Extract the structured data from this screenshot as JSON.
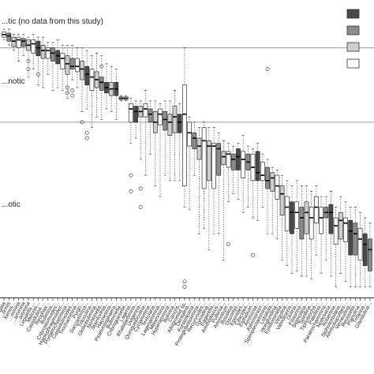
{
  "chart_data": {
    "type": "box",
    "title": "",
    "xlabel": "",
    "ylabel": "",
    "y_axis_orientation": "inverted",
    "y_range": [
      -0.08,
      1.04
    ],
    "zone_boundaries": [
      0.1,
      0.38
    ],
    "zone_labels": [
      "...tic (no data from this study)",
      "...notic",
      "...otic"
    ],
    "legend_position": "top-right",
    "legend_fills": [
      "#4a4a4a",
      "#8c8c8c",
      "#cfcfcf",
      "#ffffff"
    ],
    "categories": [
      "...laevigata",
      "...ormis",
      "Xenos...",
      "...mmina",
      "...ammina",
      "...ammina",
      "Lepidella ...",
      "Melonis...",
      "Cassidulina ...",
      "Reophax...",
      "Bulimina...",
      "Cribrostomoides...",
      "Haplophragmoides...",
      "Portatrochammina...",
      "Cassidulinoides...",
      "Trochammina...",
      "Pyrgo...",
      "Saccammina...",
      "Triloculina...",
      "Globobulimina...",
      "Nonionella...",
      "Stainforthia...",
      "Haynesina...",
      "Psammosphaera...",
      "Buliminella...",
      "Cribrogoesella...",
      "Lagena...",
      "Rhabdammina...",
      "Uvigerina...",
      "Quinqueloculina...",
      "Cyclammina...",
      "Textularia...",
      "Lagenammina...",
      "Miliammina...",
      "Hyperammina...",
      "Bolivina...",
      "Cancris...",
      "Allogromiid sp.",
      "Dentalina...",
      "Fursenkoina...",
      "Protoglobobulimina...",
      "Recurvoides...",
      "Gyroidina...",
      "Eggerella...",
      "Ammodiscus...",
      "Pullenia...",
      "Ammotium...",
      "Rosalina...",
      "Discorbis...",
      "Eponides...",
      "Cibicides...",
      "Elphidium...",
      "Ammonia...",
      "Astrononion...",
      "Spiroplectammina...",
      "Lobatula...",
      "Hoeglundina...",
      "Epistominella...",
      "Virgulina...",
      "Valvulineria...",
      "Oolina...",
      "Fissurina...",
      "Sigmoilina...",
      "Spirillina...",
      "Tiphotrocha...",
      "Patellina...",
      "Paratrochammina...",
      "Nodosaria...",
      "Robertina...",
      "Siphotextularia...",
      "Ammobaculites...",
      "Verneuilina...",
      "Reussella...",
      "Planulina...",
      "Trifarina...",
      "Glandulina..."
    ],
    "series": [
      {
        "values": [
          {
            "fill": "#ffffff",
            "min": 0.03,
            "q1": 0.04,
            "median": 0.05,
            "q3": 0.06,
            "max": 0.07,
            "outliers": []
          },
          {
            "fill": "#8c8c8c",
            "min": 0.03,
            "q1": 0.045,
            "median": 0.055,
            "q3": 0.075,
            "max": 0.09,
            "outliers": []
          },
          {
            "fill": "#cfcfcf",
            "min": 0.05,
            "q1": 0.06,
            "median": 0.075,
            "q3": 0.095,
            "max": 0.11,
            "outliers": []
          },
          {
            "fill": "#ffffff",
            "min": 0.05,
            "q1": 0.06,
            "median": 0.07,
            "q3": 0.1,
            "max": 0.15,
            "outliers": []
          },
          {
            "fill": "#8c8c8c",
            "min": 0.05,
            "q1": 0.065,
            "median": 0.075,
            "q3": 0.095,
            "max": 0.13,
            "outliers": []
          },
          {
            "fill": "#cfcfcf",
            "min": 0.06,
            "q1": 0.07,
            "median": 0.09,
            "q3": 0.11,
            "max": 0.21,
            "outliers": [
              0.15,
              0.18
            ]
          },
          {
            "fill": "#ffffff",
            "min": 0.05,
            "q1": 0.07,
            "median": 0.085,
            "q3": 0.12,
            "max": 0.18,
            "outliers": []
          },
          {
            "fill": "#4a4a4a",
            "min": 0.06,
            "q1": 0.075,
            "median": 0.1,
            "q3": 0.13,
            "max": 0.24,
            "outliers": [
              0.2
            ]
          },
          {
            "fill": "#cfcfcf",
            "min": 0.06,
            "q1": 0.09,
            "median": 0.11,
            "q3": 0.14,
            "max": 0.25,
            "outliers": []
          },
          {
            "fill": "#ffffff",
            "min": 0.08,
            "q1": 0.1,
            "median": 0.11,
            "q3": 0.14,
            "max": 0.2,
            "outliers": []
          },
          {
            "fill": "#8c8c8c",
            "min": 0.08,
            "q1": 0.1,
            "median": 0.12,
            "q3": 0.15,
            "max": 0.26,
            "outliers": []
          },
          {
            "fill": "#4a4a4a",
            "min": 0.07,
            "q1": 0.11,
            "median": 0.13,
            "q3": 0.16,
            "max": 0.25,
            "outliers": []
          },
          {
            "fill": "#ffffff",
            "min": 0.09,
            "q1": 0.12,
            "median": 0.14,
            "q3": 0.18,
            "max": 0.26,
            "outliers": []
          },
          {
            "fill": "#cfcfcf",
            "min": 0.09,
            "q1": 0.13,
            "median": 0.16,
            "q3": 0.2,
            "max": 0.29,
            "outliers": [
              0.25,
              0.27
            ]
          },
          {
            "fill": "#8c8c8c",
            "min": 0.09,
            "q1": 0.14,
            "median": 0.17,
            "q3": 0.18,
            "max": 0.22,
            "outliers": [
              0.26,
              0.28
            ]
          },
          {
            "fill": "#ffffff",
            "min": 0.1,
            "q1": 0.14,
            "median": 0.17,
            "q3": 0.19,
            "max": 0.25,
            "outliers": []
          },
          {
            "fill": "#cfcfcf",
            "min": 0.1,
            "q1": 0.15,
            "median": 0.18,
            "q3": 0.22,
            "max": 0.34,
            "outliers": [
              0.38
            ]
          },
          {
            "fill": "#4a4a4a",
            "min": 0.11,
            "q1": 0.17,
            "median": 0.2,
            "q3": 0.24,
            "max": 0.33,
            "outliers": [
              0.42,
              0.44
            ]
          },
          {
            "fill": "#ffffff",
            "min": 0.13,
            "q1": 0.18,
            "median": 0.21,
            "q3": 0.26,
            "max": 0.4,
            "outliers": []
          },
          {
            "fill": "#cfcfcf",
            "min": 0.12,
            "q1": 0.19,
            "median": 0.22,
            "q3": 0.25,
            "max": 0.36,
            "outliers": []
          },
          {
            "fill": "#8c8c8c",
            "min": 0.13,
            "q1": 0.21,
            "median": 0.23,
            "q3": 0.26,
            "max": 0.37,
            "outliers": [
              0.17
            ]
          },
          {
            "fill": "#4a4a4a",
            "min": 0.16,
            "q1": 0.23,
            "median": 0.25,
            "q3": 0.27,
            "max": 0.33,
            "outliers": []
          },
          {
            "fill": "#cfcfcf",
            "min": 0.17,
            "q1": 0.23,
            "median": 0.255,
            "q3": 0.28,
            "max": 0.34,
            "outliers": []
          },
          {
            "fill": "#4a4a4a",
            "min": 0.18,
            "q1": 0.23,
            "median": 0.255,
            "q3": 0.28,
            "max": 0.37,
            "outliers": []
          },
          {
            "fill": "#ffffff",
            "min": 0.28,
            "q1": 0.285,
            "median": 0.29,
            "q3": 0.295,
            "max": 0.3,
            "outliers": []
          },
          {
            "fill": "#ffffff",
            "min": 0.28,
            "q1": 0.285,
            "median": 0.29,
            "q3": 0.295,
            "max": 0.3,
            "outliers": []
          },
          {
            "fill": "#ffffff",
            "min": 0.29,
            "q1": 0.31,
            "median": 0.33,
            "q3": 0.38,
            "max": 0.46,
            "outliers": [
              0.58,
              0.64
            ]
          },
          {
            "fill": "#4a4a4a",
            "min": 0.3,
            "q1": 0.32,
            "median": 0.34,
            "q3": 0.38,
            "max": 0.44,
            "outliers": []
          },
          {
            "fill": "#cfcfcf",
            "min": 0.3,
            "q1": 0.32,
            "median": 0.34,
            "q3": 0.36,
            "max": 0.52,
            "outliers": [
              0.63,
              0.7
            ]
          },
          {
            "fill": "#ffffff",
            "min": 0.26,
            "q1": 0.31,
            "median": 0.33,
            "q3": 0.36,
            "max": 0.58,
            "outliers": []
          },
          {
            "fill": "#8c8c8c",
            "min": 0.3,
            "q1": 0.33,
            "median": 0.35,
            "q3": 0.38,
            "max": 0.5,
            "outliers": []
          },
          {
            "fill": "#cfcfcf",
            "min": 0.3,
            "q1": 0.34,
            "median": 0.38,
            "q3": 0.42,
            "max": 0.62,
            "outliers": []
          },
          {
            "fill": "#ffffff",
            "min": 0.31,
            "q1": 0.33,
            "median": 0.35,
            "q3": 0.39,
            "max": 0.66,
            "outliers": []
          },
          {
            "fill": "#8c8c8c",
            "min": 0.3,
            "q1": 0.34,
            "median": 0.37,
            "q3": 0.41,
            "max": 0.58,
            "outliers": []
          },
          {
            "fill": "#cfcfcf",
            "min": 0.3,
            "q1": 0.35,
            "median": 0.38,
            "q3": 0.43,
            "max": 0.6,
            "outliers": []
          },
          {
            "fill": "#cfcfcf",
            "min": 0.26,
            "q1": 0.32,
            "median": 0.36,
            "q3": 0.42,
            "max": 0.6,
            "outliers": []
          },
          {
            "fill": "#4a4a4a",
            "min": 0.31,
            "q1": 0.35,
            "median": 0.38,
            "q3": 0.42,
            "max": 0.6,
            "outliers": []
          },
          {
            "fill": "#ffffff",
            "min": 0.1,
            "q1": 0.24,
            "median": 0.35,
            "q3": 0.62,
            "max": 0.7,
            "outliers": [
              0.98,
              1.0
            ]
          },
          {
            "fill": "#ffffff",
            "min": 0.36,
            "q1": 0.38,
            "median": 0.42,
            "q3": 0.47,
            "max": 0.71,
            "outliers": []
          },
          {
            "fill": "#8c8c8c",
            "min": 0.38,
            "q1": 0.42,
            "median": 0.44,
            "q3": 0.48,
            "max": 0.58,
            "outliers": []
          },
          {
            "fill": "#cfcfcf",
            "min": 0.4,
            "q1": 0.44,
            "median": 0.47,
            "q3": 0.52,
            "max": 0.8,
            "outliers": []
          },
          {
            "fill": "#ffffff",
            "min": 0.38,
            "q1": 0.4,
            "median": 0.45,
            "q3": 0.63,
            "max": 0.78,
            "outliers": []
          },
          {
            "fill": "#cfcfcf",
            "min": 0.4,
            "q1": 0.45,
            "median": 0.47,
            "q3": 0.6,
            "max": 0.86,
            "outliers": []
          },
          {
            "fill": "#ffffff",
            "min": 0.4,
            "q1": 0.46,
            "median": 0.47,
            "q3": 0.63,
            "max": 0.8,
            "outliers": []
          },
          {
            "fill": "#8c8c8c",
            "min": 0.42,
            "q1": 0.46,
            "median": 0.48,
            "q3": 0.58,
            "max": 0.8,
            "outliers": []
          },
          {
            "fill": "#cfcfcf",
            "min": 0.45,
            "q1": 0.49,
            "median": 0.51,
            "q3": 0.54,
            "max": 0.9,
            "outliers": []
          },
          {
            "fill": "#ffffff",
            "min": 0.46,
            "q1": 0.49,
            "median": 0.5,
            "q3": 0.55,
            "max": 0.68,
            "outliers": [
              0.84
            ]
          },
          {
            "fill": "#8c8c8c",
            "min": 0.47,
            "q1": 0.5,
            "median": 0.52,
            "q3": 0.56,
            "max": 0.65,
            "outliers": []
          },
          {
            "fill": "#4a4a4a",
            "min": 0.46,
            "q1": 0.48,
            "median": 0.51,
            "q3": 0.56,
            "max": 0.67,
            "outliers": []
          },
          {
            "fill": "#ffffff",
            "min": 0.43,
            "q1": 0.49,
            "median": 0.52,
            "q3": 0.59,
            "max": 0.72,
            "outliers": []
          },
          {
            "fill": "#8c8c8c",
            "min": 0.47,
            "q1": 0.5,
            "median": 0.53,
            "q3": 0.56,
            "max": 0.7,
            "outliers": []
          },
          {
            "fill": "#ffffff",
            "min": 0.48,
            "q1": 0.5,
            "median": 0.55,
            "q3": 0.6,
            "max": 0.74,
            "outliers": [
              0.88
            ]
          },
          {
            "fill": "#4a4a4a",
            "min": 0.46,
            "q1": 0.49,
            "median": 0.57,
            "q3": 0.6,
            "max": 0.75,
            "outliers": []
          },
          {
            "fill": "#ffffff",
            "min": 0.5,
            "q1": 0.53,
            "median": 0.58,
            "q3": 0.6,
            "max": 0.7,
            "outliers": []
          },
          {
            "fill": "#8c8c8c",
            "min": 0.52,
            "q1": 0.55,
            "median": 0.6,
            "q3": 0.63,
            "max": 0.8,
            "outliers": [
              0.18
            ]
          },
          {
            "fill": "#cfcfcf",
            "min": 0.55,
            "q1": 0.57,
            "median": 0.59,
            "q3": 0.64,
            "max": 0.8,
            "outliers": []
          },
          {
            "fill": "#ffffff",
            "min": 0.56,
            "q1": 0.58,
            "median": 0.62,
            "q3": 0.67,
            "max": 0.82,
            "outliers": []
          },
          {
            "fill": "#cfcfcf",
            "min": 0.58,
            "q1": 0.62,
            "median": 0.65,
            "q3": 0.73,
            "max": 0.9,
            "outliers": []
          },
          {
            "fill": "#ffffff",
            "min": 0.6,
            "q1": 0.66,
            "median": 0.7,
            "q3": 0.79,
            "max": 0.92,
            "outliers": []
          },
          {
            "fill": "#4a4a4a",
            "min": 0.62,
            "q1": 0.68,
            "median": 0.72,
            "q3": 0.8,
            "max": 0.95,
            "outliers": []
          },
          {
            "fill": "#ffffff",
            "min": 0.6,
            "q1": 0.68,
            "median": 0.72,
            "q3": 0.78,
            "max": 0.94,
            "outliers": []
          },
          {
            "fill": "#8c8c8c",
            "min": 0.62,
            "q1": 0.7,
            "median": 0.74,
            "q3": 0.82,
            "max": 0.96,
            "outliers": []
          },
          {
            "fill": "#cfcfcf",
            "min": 0.62,
            "q1": 0.68,
            "median": 0.72,
            "q3": 0.8,
            "max": 0.96,
            "outliers": []
          },
          {
            "fill": "#ffffff",
            "min": 0.64,
            "q1": 0.7,
            "median": 0.74,
            "q3": 0.82,
            "max": 0.97,
            "outliers": []
          },
          {
            "fill": "#ffffff",
            "min": 0.62,
            "q1": 0.66,
            "median": 0.7,
            "q3": 0.76,
            "max": 0.88,
            "outliers": []
          },
          {
            "fill": "#ffffff",
            "min": 0.66,
            "q1": 0.7,
            "median": 0.74,
            "q3": 0.8,
            "max": 0.95,
            "outliers": []
          },
          {
            "fill": "#8c8c8c",
            "min": 0.66,
            "q1": 0.7,
            "median": 0.72,
            "q3": 0.74,
            "max": 0.9,
            "outliers": []
          },
          {
            "fill": "#4a4a4a",
            "min": 0.64,
            "q1": 0.69,
            "median": 0.72,
            "q3": 0.8,
            "max": 0.96,
            "outliers": []
          },
          {
            "fill": "#ffffff",
            "min": 0.7,
            "q1": 0.74,
            "median": 0.77,
            "q3": 0.84,
            "max": 1.0,
            "outliers": []
          },
          {
            "fill": "#cfcfcf",
            "min": 0.66,
            "q1": 0.72,
            "median": 0.75,
            "q3": 0.82,
            "max": 0.95,
            "outliers": []
          },
          {
            "fill": "#ffffff",
            "min": 0.68,
            "q1": 0.74,
            "median": 0.76,
            "q3": 0.83,
            "max": 0.98,
            "outliers": []
          },
          {
            "fill": "#4a4a4a",
            "min": 0.7,
            "q1": 0.75,
            "median": 0.79,
            "q3": 0.88,
            "max": 1.0,
            "outliers": []
          },
          {
            "fill": "#8c8c8c",
            "min": 0.7,
            "q1": 0.76,
            "median": 0.8,
            "q3": 0.88,
            "max": 1.0,
            "outliers": []
          },
          {
            "fill": "#ffffff",
            "min": 0.72,
            "q1": 0.78,
            "median": 0.82,
            "q3": 0.9,
            "max": 1.0,
            "outliers": []
          },
          {
            "fill": "#4a4a4a",
            "min": 0.74,
            "q1": 0.8,
            "median": 0.84,
            "q3": 0.92,
            "max": 1.0,
            "outliers": []
          },
          {
            "fill": "#8c8c8c",
            "min": 0.76,
            "q1": 0.82,
            "median": 0.86,
            "q3": 0.94,
            "max": 1.0,
            "outliers": []
          }
        ]
      }
    ],
    "grid": false
  }
}
